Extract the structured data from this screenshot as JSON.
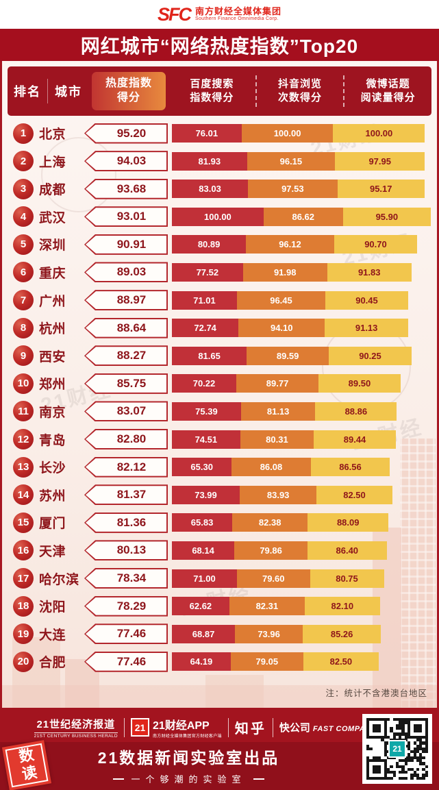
{
  "header": {
    "logo_text": "SFC",
    "org_cn": "南方财经全媒体集团",
    "org_en": "Southern Finance Omnimedia Corp.",
    "title": "网红城市“网络热度指数”Top20"
  },
  "table": {
    "col_rank": "排名",
    "col_city": "城市",
    "col_score": "热度指数\n得分",
    "col_baidu": "百度搜索\n指数得分",
    "col_douyin": "抖音浏览\n次数得分",
    "col_weibo": "微博话题\n阅读量得分"
  },
  "note": "注：统计不含港澳台地区",
  "watermark": "21财经",
  "chart_data": {
    "type": "bar",
    "stacked": true,
    "orientation": "horizontal",
    "title": "网红城市“网络热度指数”Top20",
    "categories": [
      "北京",
      "上海",
      "成都",
      "武汉",
      "深圳",
      "重庆",
      "广州",
      "杭州",
      "西安",
      "郑州",
      "南京",
      "青岛",
      "长沙",
      "苏州",
      "厦门",
      "天津",
      "哈尔滨",
      "沈阳",
      "大连",
      "合肥"
    ],
    "ranks": [
      1,
      2,
      3,
      4,
      5,
      6,
      7,
      8,
      9,
      10,
      11,
      12,
      13,
      14,
      15,
      16,
      17,
      18,
      19,
      20
    ],
    "total_scores": [
      95.2,
      94.03,
      93.68,
      93.01,
      90.91,
      89.03,
      88.97,
      88.64,
      88.27,
      85.75,
      83.07,
      82.8,
      82.12,
      81.37,
      81.36,
      80.13,
      78.34,
      78.29,
      77.46,
      77.46
    ],
    "series": [
      {
        "name": "百度搜索指数得分",
        "color": "#c13038",
        "values": [
          76.01,
          81.93,
          83.03,
          100.0,
          80.89,
          77.52,
          71.01,
          72.74,
          81.65,
          70.22,
          75.39,
          74.51,
          65.3,
          73.99,
          65.83,
          68.14,
          71.0,
          62.62,
          68.87,
          64.19
        ]
      },
      {
        "name": "抖音浏览次数得分",
        "color": "#de7c33",
        "values": [
          100.0,
          96.15,
          97.53,
          86.62,
          96.12,
          91.98,
          96.45,
          94.1,
          89.59,
          89.77,
          81.13,
          80.31,
          86.08,
          83.93,
          82.38,
          79.86,
          79.6,
          82.31,
          73.96,
          79.05
        ]
      },
      {
        "name": "微博话题阅读量得分",
        "color": "#f2c64d",
        "values": [
          100.0,
          97.95,
          95.17,
          95.9,
          90.7,
          91.83,
          90.45,
          91.13,
          90.25,
          89.5,
          88.86,
          89.44,
          86.56,
          82.5,
          88.09,
          86.4,
          80.75,
          82.1,
          85.26,
          82.5
        ]
      }
    ],
    "value_format": "two-decimals",
    "note": "注：统计不含港澳台地区",
    "xlim": [
      0,
      300
    ],
    "legend_position": "column-headers",
    "grid": false
  },
  "footer": {
    "brand_21cbh": "21世纪经济报道",
    "brand_21cbh_en": "21ST CENTURY BUSINESS HERALD",
    "brand_21app_logo": "21",
    "brand_21app": "21财经APP",
    "brand_21app_sub": "南方财经全媒体集团官方财经客户端",
    "brand_zhihu": "知乎",
    "brand_fc_cn": "快公司",
    "brand_fc_en": "FAST COMPANY",
    "produced_by": "21数据新闻实验室出品",
    "tagline": "一个够潮的实验室",
    "stamp": "数读",
    "qr_label": "21"
  },
  "colors": {
    "banner_red": "#a50f1e",
    "header_band": "#9e1420",
    "score_box_gradient_start": "#c13531",
    "score_box_gradient_end": "#e88a3e",
    "bar_baidu": "#c13038",
    "bar_douyin": "#de7c33",
    "bar_weibo": "#f2c64d",
    "rank_circle": "#b01e24",
    "city_text": "#8e151b",
    "footer_bg": "#90101b",
    "sfc_red": "#e0251b"
  }
}
